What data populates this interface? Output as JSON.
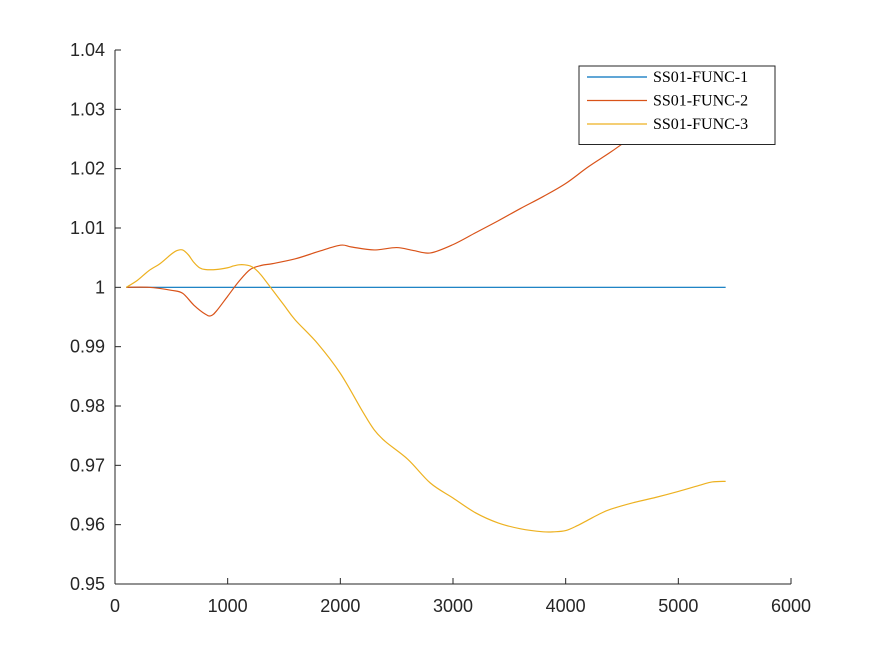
{
  "chart_data": {
    "type": "line",
    "title": "",
    "xlabel": "",
    "ylabel": "",
    "xlim": [
      0,
      6000
    ],
    "ylim": [
      0.95,
      1.04
    ],
    "xticks": [
      0,
      1000,
      2000,
      3000,
      4000,
      5000,
      6000
    ],
    "xtick_labels": [
      "0",
      "1000",
      "2000",
      "3000",
      "4000",
      "5000",
      "6000"
    ],
    "yticks": [
      0.95,
      0.96,
      0.97,
      0.98,
      0.99,
      1.0,
      1.01,
      1.02,
      1.03,
      1.04
    ],
    "ytick_labels": [
      "0.95",
      "0.96",
      "0.97",
      "0.98",
      "0.99",
      "1",
      "1.01",
      "1.02",
      "1.03",
      "1.04"
    ],
    "grid": false,
    "legend_position": "top-right",
    "series": [
      {
        "name": "SS01-FUNC-1",
        "color": "#0072BD",
        "x": [
          100,
          5420
        ],
        "y": [
          1.0,
          1.0
        ]
      },
      {
        "name": "SS01-FUNC-2",
        "color": "#D95319",
        "x": [
          100,
          300,
          500,
          600,
          700,
          800,
          850,
          900,
          1000,
          1100,
          1200,
          1300,
          1400,
          1600,
          1800,
          2000,
          2100,
          2300,
          2500,
          2650,
          2800,
          3000,
          3200,
          3400,
          3600,
          3800,
          4000,
          4200,
          4400,
          4600,
          4750
        ],
        "y": [
          1.0,
          1.0,
          0.9995,
          0.999,
          0.997,
          0.9955,
          0.9952,
          0.996,
          0.9985,
          1.001,
          1.003,
          1.0037,
          1.004,
          1.0048,
          1.006,
          1.0071,
          1.0068,
          1.0063,
          1.0067,
          1.0062,
          1.0058,
          1.0072,
          1.0092,
          1.0112,
          1.0133,
          1.0153,
          1.0175,
          1.0203,
          1.0228,
          1.0255,
          1.0275
        ]
      },
      {
        "name": "SS01-FUNC-3",
        "color": "#EDB120",
        "x": [
          100,
          200,
          300,
          400,
          500,
          550,
          600,
          650,
          700,
          750,
          800,
          900,
          1000,
          1050,
          1100,
          1150,
          1200,
          1250,
          1300,
          1400,
          1500,
          1600,
          1800,
          2000,
          2200,
          2300,
          2400,
          2600,
          2800,
          3000,
          3200,
          3400,
          3600,
          3800,
          3900,
          4000,
          4100,
          4200,
          4300,
          4400,
          4600,
          4800,
          5000,
          5200,
          5300,
          5420
        ],
        "y": [
          1.0,
          1.0012,
          1.0028,
          1.004,
          1.0056,
          1.0062,
          1.0063,
          1.0055,
          1.0042,
          1.0033,
          1.003,
          1.003,
          1.0033,
          1.0036,
          1.0038,
          1.0038,
          1.0036,
          1.003,
          1.002,
          0.9995,
          0.997,
          0.9945,
          0.9905,
          0.9855,
          0.979,
          0.976,
          0.974,
          0.971,
          0.967,
          0.9645,
          0.962,
          0.9603,
          0.9593,
          0.9588,
          0.9588,
          0.959,
          0.9598,
          0.9608,
          0.9618,
          0.9626,
          0.9637,
          0.9646,
          0.9656,
          0.9667,
          0.9672,
          0.9673
        ]
      }
    ]
  }
}
